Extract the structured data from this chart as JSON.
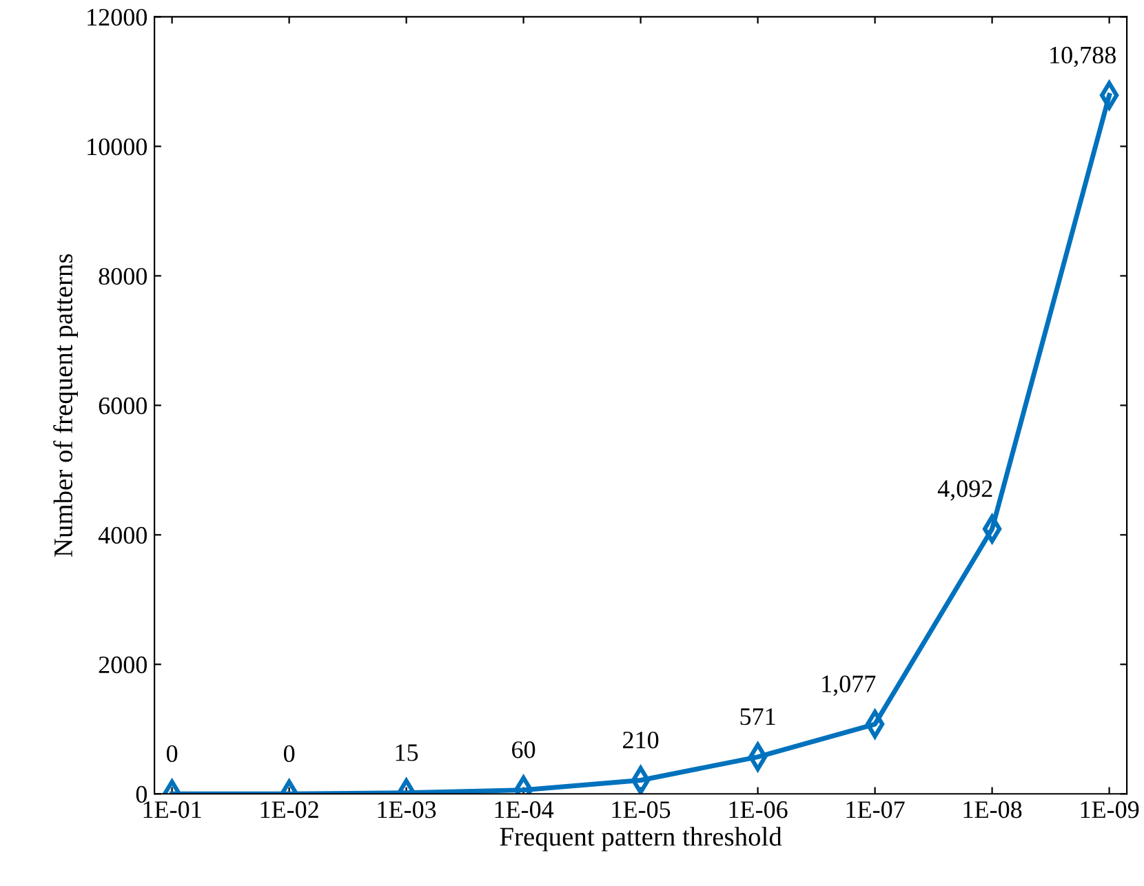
{
  "chart_data": {
    "type": "line",
    "xlabel": "Frequent pattern threshold",
    "ylabel": "Number of frequent patterns",
    "categories": [
      "1E-01",
      "1E-02",
      "1E-03",
      "1E-04",
      "1E-05",
      "1E-06",
      "1E-07",
      "1E-08",
      "1E-09"
    ],
    "series": [
      {
        "color": "#0072bd",
        "values": [
          0,
          0,
          15,
          60,
          210,
          571,
          1077,
          4092,
          10788
        ],
        "value_labels": [
          "0",
          "0",
          "15",
          "60",
          "210",
          "571",
          "1,077",
          "4,092",
          "10,788"
        ]
      }
    ],
    "ylim": [
      0,
      12000
    ],
    "yticks": [
      0,
      2000,
      4000,
      6000,
      8000,
      10000,
      12000
    ],
    "grid": false,
    "marker": "diamond",
    "line_style": "solid"
  }
}
